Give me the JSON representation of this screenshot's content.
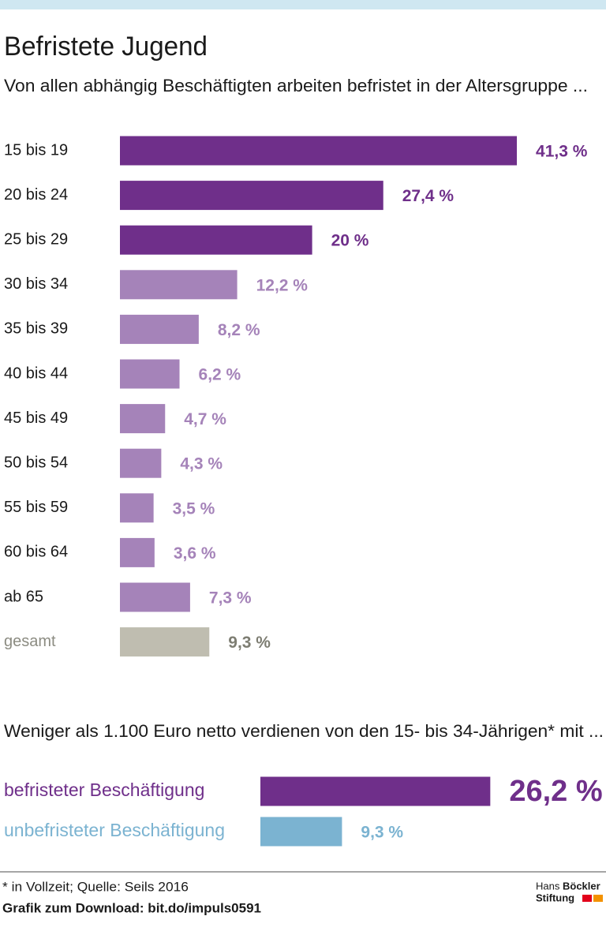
{
  "chart_data": [
    {
      "type": "hbar",
      "title": "Befristete Jugend",
      "subtitle": "Von allen abhängig Beschäftigten arbeiten befristet in der Altersgruppe ...",
      "categories": [
        "15 bis 19",
        "20 bis 24",
        "25 bis 29",
        "30 bis 34",
        "35 bis 39",
        "40 bis 44",
        "45 bis 49",
        "50 bis 54",
        "55 bis 59",
        "60 bis 64",
        "ab 65",
        "gesamt"
      ],
      "values": [
        41.3,
        27.4,
        20,
        12.2,
        8.2,
        6.2,
        4.7,
        4.3,
        3.5,
        3.6,
        7.3,
        9.3
      ],
      "value_labels": [
        "41,3 %",
        "27,4 %",
        "20 %",
        "12,2 %",
        "8,2 %",
        "6,2 %",
        "4,7 %",
        "4,3 %",
        "3,5 %",
        "3,6 %",
        "7,3 %",
        "9,3 %"
      ],
      "colors": [
        "#6f2f8a",
        "#6f2f8a",
        "#6f2f8a",
        "#a583b9",
        "#a583b9",
        "#a583b9",
        "#a583b9",
        "#a583b9",
        "#a583b9",
        "#a583b9",
        "#a583b9",
        "#bfbdb0"
      ],
      "label_colors": [
        "#1a1a1a",
        "#1a1a1a",
        "#1a1a1a",
        "#1a1a1a",
        "#1a1a1a",
        "#1a1a1a",
        "#1a1a1a",
        "#1a1a1a",
        "#1a1a1a",
        "#1a1a1a",
        "#1a1a1a",
        "#8c8c82"
      ],
      "value_label_colors": [
        "#6f2f8a",
        "#6f2f8a",
        "#6f2f8a",
        "#a583b9",
        "#a583b9",
        "#a583b9",
        "#a583b9",
        "#a583b9",
        "#a583b9",
        "#a583b9",
        "#a583b9",
        "#7d7d72"
      ]
    },
    {
      "type": "hbar",
      "title": "Weniger als 1.100 Euro netto verdienen von den 15- bis 34-Jährigen* mit ...",
      "categories": [
        "befristeter Beschäftigung",
        "unbefristeter Beschäftigung"
      ],
      "values": [
        26.2,
        9.3
      ],
      "value_labels": [
        "26,2 %",
        "9,3 %"
      ],
      "colors": [
        "#6f2f8a",
        "#7bb3d1"
      ],
      "label_colors": [
        "#6f2f8a",
        "#7bb3d1"
      ],
      "value_label_colors": [
        "#6f2f8a",
        "#7bb3d1"
      ]
    }
  ],
  "footer": {
    "note": "* in Vollzeit; Quelle: Seils 2016",
    "download": "Grafik zum Download: bit.do/impuls0591"
  },
  "logo": {
    "first": "Hans",
    "second": "Böckler",
    "third": "Stiftung"
  }
}
